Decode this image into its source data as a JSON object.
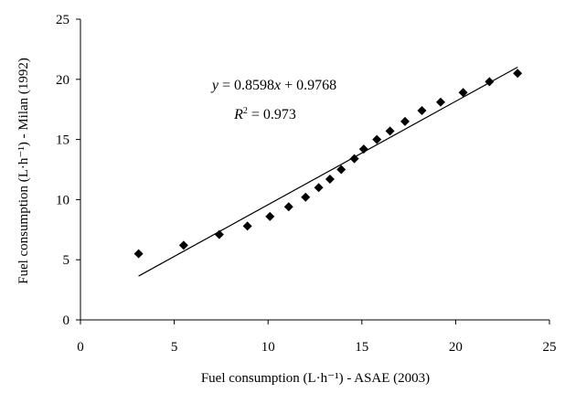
{
  "chart_data": {
    "type": "scatter",
    "title": "",
    "xlabel": "Fuel consumption (L·h⁻¹) - ASAE (2003)",
    "ylabel": "Fuel consumption (L·h⁻¹) - Milan (1992)",
    "xlim": [
      0,
      25
    ],
    "ylim": [
      0,
      25
    ],
    "x_ticks": [
      "0",
      "5",
      "10",
      "15",
      "20",
      "25"
    ],
    "y_ticks": [
      "0",
      "5",
      "10",
      "15",
      "20",
      "25"
    ],
    "grid": false,
    "legend": "none",
    "marker": "diamond",
    "marker_color": "#000000",
    "points": [
      {
        "x": 3.1,
        "y": 5.5
      },
      {
        "x": 5.5,
        "y": 6.2
      },
      {
        "x": 7.4,
        "y": 7.1
      },
      {
        "x": 8.9,
        "y": 7.8
      },
      {
        "x": 10.1,
        "y": 8.6
      },
      {
        "x": 11.1,
        "y": 9.4
      },
      {
        "x": 12.0,
        "y": 10.2
      },
      {
        "x": 12.7,
        "y": 11.0
      },
      {
        "x": 13.3,
        "y": 11.7
      },
      {
        "x": 13.9,
        "y": 12.5
      },
      {
        "x": 14.6,
        "y": 13.4
      },
      {
        "x": 15.1,
        "y": 14.2
      },
      {
        "x": 15.8,
        "y": 15.0
      },
      {
        "x": 16.5,
        "y": 15.7
      },
      {
        "x": 17.3,
        "y": 16.5
      },
      {
        "x": 18.2,
        "y": 17.4
      },
      {
        "x": 19.2,
        "y": 18.1
      },
      {
        "x": 20.4,
        "y": 18.9
      },
      {
        "x": 21.8,
        "y": 19.8
      },
      {
        "x": 23.3,
        "y": 20.5
      }
    ],
    "trendline": {
      "slope": 0.8598,
      "intercept": 0.9768,
      "x_range": [
        3.1,
        23.3
      ],
      "color": "#000000"
    },
    "annotations": {
      "equation": "y = 0.8598x + 0.9768",
      "r_squared": "R² = 0.973"
    }
  }
}
